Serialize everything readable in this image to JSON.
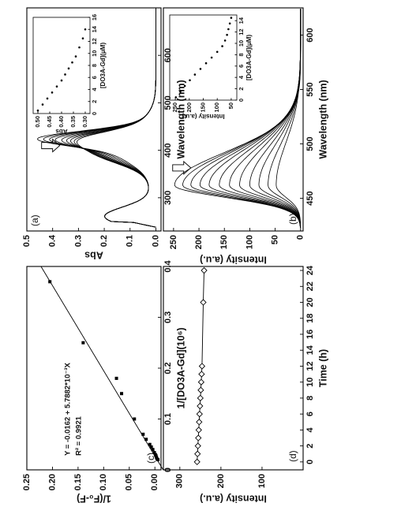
{
  "figure": {
    "orientation": "rotated-90-ccw",
    "panel_letters": [
      "(a)",
      "(b)",
      "(c)",
      "(d)"
    ]
  },
  "chart_data": [
    {
      "id": "a",
      "panel": "(a)",
      "type": "line",
      "xlabel": "Wavelength (nm)",
      "ylabel": "Abs",
      "xlim": [
        230,
        700
      ],
      "ylim": [
        -0.02,
        0.5
      ],
      "xticks": [
        300,
        400,
        500,
        600
      ],
      "yticks": [
        0.0,
        0.1,
        0.2,
        0.3,
        0.4,
        0.5
      ],
      "color": "#000000",
      "series_count": 9,
      "peak_short_nm": 260,
      "peak_short_abs": 0.19,
      "peak_decreasing_nm": 425,
      "peak_decreasing_abs": [
        0.455,
        0.425,
        0.395,
        0.365,
        0.335,
        0.31,
        0.29,
        0.27,
        0.255
      ],
      "peak_increasing_nm": 395,
      "peak_increasing_abs": [
        0.21,
        0.225,
        0.24,
        0.255,
        0.265,
        0.275,
        0.282,
        0.29,
        0.295
      ],
      "annotation": "arrow-down at 410 nm",
      "inset": {
        "type": "scatter",
        "xlabel": "[DO3A-Gd](μM)",
        "ylabel": "Abs",
        "xlim": [
          0,
          16
        ],
        "ylim": [
          0.28,
          0.52
        ],
        "xticks": [
          0,
          2,
          4,
          6,
          8,
          10,
          12,
          14,
          16
        ],
        "yticks": [
          0.3,
          0.35,
          0.4,
          0.45,
          0.5
        ],
        "x": [
          0.5,
          1.5,
          2.5,
          3.5,
          4.5,
          5.5,
          6.5,
          7.5,
          8.5,
          9.5,
          11.0,
          12.5,
          14.0
        ],
        "y": [
          0.5,
          0.48,
          0.46,
          0.44,
          0.42,
          0.4,
          0.385,
          0.37,
          0.355,
          0.34,
          0.325,
          0.31,
          0.3
        ]
      }
    },
    {
      "id": "b",
      "panel": "(b)",
      "type": "line",
      "xlabel": "Wavelength (nm)",
      "ylabel": "Intensity (a.u.)",
      "xlim": [
        420,
        625
      ],
      "ylim": [
        -5,
        270
      ],
      "xticks": [
        450,
        500,
        550,
        600
      ],
      "yticks": [
        0,
        50,
        100,
        150,
        200,
        250
      ],
      "color": "#000000",
      "series_count": 12,
      "peak_nm": 462,
      "peak_intensity": [
        248,
        232,
        216,
        198,
        180,
        160,
        140,
        120,
        100,
        82,
        64,
        48
      ],
      "annotation": "arrow-down at 478 nm",
      "inset": {
        "type": "scatter",
        "xlabel": "[DO3A-Gd](μM)",
        "ylabel": "Intensity (a.u.)",
        "xlim": [
          0,
          15
        ],
        "ylim": [
          30,
          270
        ],
        "xticks": [
          0,
          2,
          4,
          6,
          8,
          10,
          12,
          14
        ],
        "yticks": [
          50,
          100,
          150,
          200,
          250
        ],
        "x": [
          0.5,
          1.5,
          2.5,
          3.5,
          4.5,
          5.5,
          6.5,
          7.5,
          8.5,
          9.5,
          10.5,
          11.5,
          12.5,
          13.5,
          14.5
        ],
        "y": [
          248,
          232,
          216,
          198,
          180,
          160,
          140,
          120,
          100,
          82,
          72,
          65,
          60,
          55,
          50
        ]
      }
    },
    {
      "id": "c",
      "panel": "(c)",
      "type": "scatter",
      "xlabel": "1/[DO3A-Gd](10⁶)",
      "ylabel": "1/(F₀-F)",
      "xlim": [
        0,
        0.4
      ],
      "ylim": [
        -0.012,
        0.25
      ],
      "xticks": [
        0.0,
        0.1,
        0.2,
        0.3,
        0.4
      ],
      "yticks": [
        0.0,
        0.05,
        0.1,
        0.15,
        0.2,
        0.25
      ],
      "x": [
        0.02,
        0.022,
        0.025,
        0.028,
        0.03,
        0.034,
        0.04,
        0.045,
        0.05,
        0.06,
        0.07,
        0.1,
        0.15,
        0.18,
        0.25,
        0.37
      ],
      "y": [
        -0.006,
        -0.004,
        -0.003,
        -0.002,
        -0.001,
        0.001,
        0.004,
        0.007,
        0.01,
        0.017,
        0.023,
        0.04,
        0.065,
        0.075,
        0.14,
        0.205
      ],
      "fit": {
        "intercept": -0.0162,
        "slope": 0.0057882
      },
      "equation": "Y = -0.0162 + 5.7882*10⁻³X",
      "r2": "R² = 0.9921",
      "color": "#000000"
    },
    {
      "id": "d",
      "panel": "(d)",
      "type": "line",
      "xlabel": "Time (h)",
      "ylabel": "Intensity (a.u.)",
      "xlim": [
        -1,
        24.5
      ],
      "ylim": [
        0,
        340
      ],
      "xticks": [
        0,
        2,
        4,
        6,
        8,
        10,
        12,
        14,
        16,
        18,
        20,
        22,
        24
      ],
      "yticks": [
        100,
        200,
        300
      ],
      "x": [
        0,
        1,
        2,
        3,
        4,
        5,
        6,
        7,
        8,
        9,
        10,
        11,
        12,
        20,
        24
      ],
      "y": [
        258,
        257,
        256,
        255,
        254,
        253,
        252,
        251,
        250,
        249,
        248,
        247,
        246,
        243,
        241
      ],
      "marker": "diamond",
      "color": "#000000"
    }
  ]
}
